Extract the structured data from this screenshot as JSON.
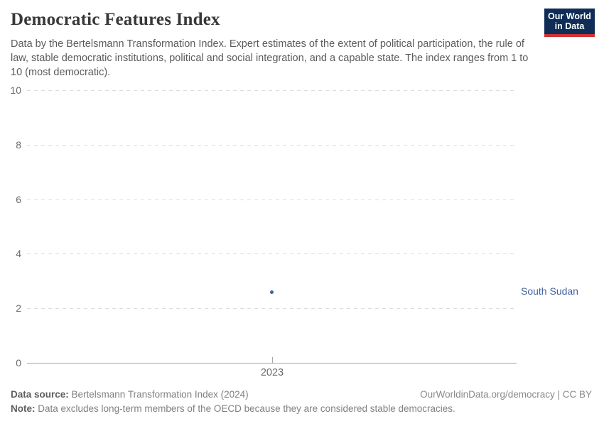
{
  "header": {
    "title": "Democratic Features Index",
    "subtitle": "Data by the Bertelsmann Transformation Index. Expert estimates of the extent of political participation, the rule of law, stable democratic institutions, political and social integration, and a capable state. The index ranges from 1 to 10 (most democratic).",
    "logo": {
      "line1": "Our World",
      "line2": "in Data",
      "bg_color": "#0f2d56",
      "accent_color": "#cf3235"
    }
  },
  "chart_data": {
    "type": "scatter",
    "title": "Democratic Features Index",
    "x": [
      2023
    ],
    "xticks": [
      "2023"
    ],
    "series": [
      {
        "name": "South Sudan",
        "values": [
          2.6
        ],
        "color": "#3d639c",
        "label_color": "#41649e"
      }
    ],
    "xlabel": "",
    "ylabel": "",
    "ylim": [
      0,
      10
    ],
    "yticks": [
      0,
      2,
      4,
      6,
      8,
      10
    ],
    "grid": "horizontal-dashed",
    "legend_position": "entity-label-right-of-plot"
  },
  "footer": {
    "source_label": "Data source:",
    "source_text": " Bertelsmann Transformation Index (2024)",
    "attribution": "OurWorldinData.org/democracy | CC BY",
    "note_label": "Note:",
    "note_text": " Data excludes long-term members of the OECD because they are considered stable democracies."
  }
}
